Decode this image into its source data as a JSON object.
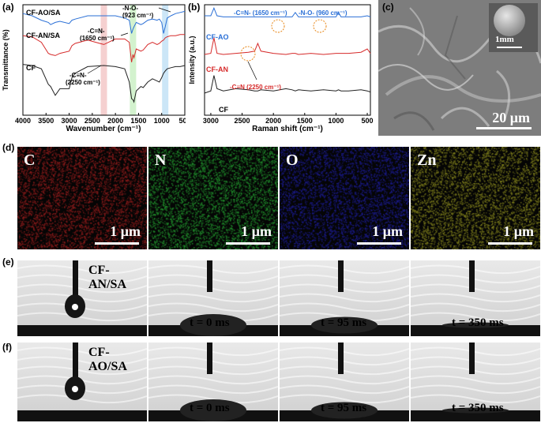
{
  "panel_a": {
    "label": "(a)",
    "ylabel": "Transmittance (%)",
    "xlabel": "Wavenumber (cm⁻¹)",
    "xticks": [
      "4000",
      "3500",
      "3000",
      "2500",
      "2000",
      "1500",
      "1000",
      "500"
    ],
    "series_labels": [
      "CF-AO/SA",
      "CF-AN/SA",
      "CF"
    ],
    "ann_cn1": "-C=N-",
    "ann_cn2": "(1650 cm⁻¹)",
    "ann_cnn1": "-C≡N-",
    "ann_cnn2": "(2250 cm⁻¹)",
    "ann_no1": "-N-O-",
    "ann_no2": "(923 cm⁻¹)"
  },
  "panel_b": {
    "label": "(b)",
    "ylabel": "Intensity (a.u.)",
    "xlabel": "Raman shift (cm⁻¹)",
    "xticks": [
      "3000",
      "2500",
      "2000",
      "1500",
      "1000",
      "500"
    ],
    "series_labels": [
      "CF-AO",
      "CF-AN",
      "CF"
    ],
    "ann_cn": "-C=N-  (1650 cm⁻¹)",
    "ann_no": "-N-O- (960 cm⁻¹)",
    "ann_cnn": "-C≡N (2250 cm⁻¹)"
  },
  "panel_c": {
    "label": "(c)",
    "scale_main": "20 μm",
    "scale_inset": "1mm"
  },
  "panel_d": {
    "label": "(d)",
    "maps": [
      {
        "element": "C",
        "scale": "1 μm",
        "color": "#8a1a1a"
      },
      {
        "element": "N",
        "scale": "1 μm",
        "color": "#1f8a2a"
      },
      {
        "element": "O",
        "scale": "1 μm",
        "color": "#1a1a8a"
      },
      {
        "element": "Zn",
        "scale": "1 μm",
        "color": "#7a7a1a"
      }
    ]
  },
  "panel_e": {
    "label": "(e)",
    "sample": "CF-AN/SA",
    "times": [
      "t = 0 ms",
      "t = 95 ms",
      "t = 350 ms"
    ]
  },
  "panel_f": {
    "label": "(f)",
    "sample": "CF-AO/SA",
    "times": [
      "t = 0 ms",
      "t = 95 ms",
      "t = 350 ms"
    ]
  },
  "chart_data": [
    {
      "type": "line",
      "title": "",
      "xlabel": "Wavenumber (cm⁻¹)",
      "ylabel": "Transmittance (%)",
      "xlim": [
        4000,
        500
      ],
      "x": [
        4000,
        3800,
        3600,
        3450,
        3400,
        3300,
        3200,
        3000,
        2940,
        2870,
        2600,
        2250,
        2000,
        1800,
        1700,
        1650,
        1620,
        1600,
        1550,
        1450,
        1400,
        1300,
        1200,
        1100,
        1050,
        1000,
        960,
        923,
        880,
        800,
        700,
        600,
        500
      ],
      "series": [
        {
          "name": "CF-AO/SA",
          "color": "#2a6fd6",
          "values": [
            0.92,
            0.9,
            0.86,
            0.84,
            0.82,
            0.84,
            0.85,
            0.83,
            0.86,
            0.87,
            0.9,
            0.9,
            0.9,
            0.88,
            0.86,
            0.74,
            0.78,
            0.8,
            0.84,
            0.82,
            0.83,
            0.86,
            0.87,
            0.86,
            0.87,
            0.84,
            0.74,
            0.8,
            0.88,
            0.9,
            0.92,
            0.93,
            0.94
          ]
        },
        {
          "name": "CF-AN/SA",
          "color": "#d62a2a",
          "values": [
            0.72,
            0.71,
            0.66,
            0.56,
            0.55,
            0.54,
            0.56,
            0.58,
            0.63,
            0.65,
            0.68,
            0.64,
            0.69,
            0.69,
            0.66,
            0.48,
            0.55,
            0.52,
            0.6,
            0.58,
            0.59,
            0.64,
            0.66,
            0.64,
            0.65,
            0.67,
            0.68,
            0.7,
            0.71,
            0.72,
            0.72,
            0.73,
            0.73
          ]
        },
        {
          "name": "CF",
          "color": "#222222",
          "values": [
            0.46,
            0.45,
            0.42,
            0.28,
            0.26,
            0.18,
            0.24,
            0.24,
            0.34,
            0.38,
            0.44,
            0.45,
            0.44,
            0.42,
            0.3,
            0.15,
            0.14,
            0.12,
            0.22,
            0.26,
            0.25,
            0.3,
            0.33,
            0.31,
            0.3,
            0.34,
            0.38,
            0.4,
            0.42,
            0.43,
            0.44,
            0.44,
            0.45
          ]
        }
      ]
    },
    {
      "type": "line",
      "title": "",
      "xlabel": "Raman shift (cm⁻¹)",
      "ylabel": "Intensity (a.u.)",
      "xlim": [
        3100,
        450
      ],
      "x": [
        3100,
        3000,
        2950,
        2900,
        2800,
        2600,
        2400,
        2300,
        2250,
        2200,
        2000,
        1800,
        1700,
        1650,
        1600,
        1400,
        1200,
        1000,
        960,
        920,
        800,
        600,
        500,
        450
      ],
      "series": [
        {
          "name": "CF-AO",
          "color": "#2a6fd6",
          "values": [
            0.9,
            0.9,
            0.97,
            0.9,
            0.89,
            0.89,
            0.89,
            0.89,
            0.89,
            0.89,
            0.89,
            0.89,
            0.89,
            0.93,
            0.89,
            0.89,
            0.89,
            0.89,
            0.93,
            0.89,
            0.89,
            0.89,
            0.9,
            0.89
          ]
        },
        {
          "name": "CF-AN",
          "color": "#d62a2a",
          "values": [
            0.55,
            0.56,
            0.7,
            0.56,
            0.55,
            0.56,
            0.57,
            0.58,
            0.65,
            0.58,
            0.56,
            0.55,
            0.56,
            0.56,
            0.55,
            0.56,
            0.55,
            0.56,
            0.56,
            0.56,
            0.56,
            0.57,
            0.6,
            0.56
          ]
        },
        {
          "name": "CF",
          "color": "#222222",
          "values": [
            0.2,
            0.22,
            0.36,
            0.24,
            0.22,
            0.24,
            0.23,
            0.22,
            0.22,
            0.23,
            0.22,
            0.24,
            0.23,
            0.22,
            0.23,
            0.22,
            0.23,
            0.22,
            0.23,
            0.22,
            0.22,
            0.23,
            0.22,
            0.21
          ]
        }
      ]
    }
  ]
}
